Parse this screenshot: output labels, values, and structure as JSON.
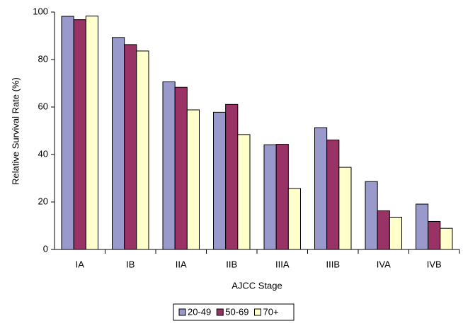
{
  "chart_data": {
    "type": "bar",
    "x_label": "AJCC Stage",
    "y_label": "Relative Survival Rate (%)",
    "categories": [
      "IA",
      "IB",
      "IIA",
      "IIB",
      "IIIA",
      "IIIB",
      "IVA",
      "IVB"
    ],
    "series": [
      {
        "name": "20-49",
        "color": "#9999cc",
        "values": [
          98.2,
          89.3,
          70.6,
          57.8,
          44.1,
          51.3,
          28.6,
          19.1
        ]
      },
      {
        "name": "50-69",
        "color": "#993366",
        "values": [
          96.8,
          86.3,
          68.3,
          61.1,
          44.3,
          46.1,
          16.3,
          11.8
        ]
      },
      {
        "name": "70+",
        "color": "#ffffcc",
        "values": [
          98.3,
          83.6,
          58.8,
          48.4,
          25.7,
          34.6,
          13.6,
          8.9
        ]
      }
    ],
    "ylim": [
      0,
      100
    ],
    "yticks": [
      0,
      20,
      40,
      60,
      80,
      100
    ],
    "grid": false,
    "legend": "bottom"
  }
}
